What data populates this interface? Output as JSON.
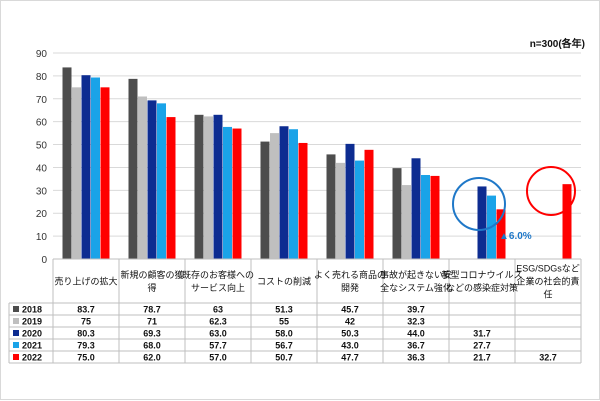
{
  "note": "n=300(各年)",
  "callout": "▲6.0%",
  "chart_data": {
    "type": "bar",
    "ylim": [
      0,
      90
    ],
    "yticks": [
      0,
      10,
      20,
      30,
      40,
      50,
      60,
      70,
      80,
      90
    ],
    "grid": true,
    "categories": [
      [
        "売り上げの拡大"
      ],
      [
        "新規の顧客の獲",
        "得"
      ],
      [
        "既存のお客様への",
        "サービス向上"
      ],
      [
        "コストの削減"
      ],
      [
        "よく売れる商品の",
        "開発"
      ],
      [
        "事故が起きない安",
        "全なシステム強化"
      ],
      [
        "新型コロナウイルス",
        "などの感染症対策"
      ],
      [
        "ESG/SDGsなど",
        "企業の社会的責",
        "任"
      ]
    ],
    "series": [
      {
        "name": "2018",
        "color": "#4d4d4d",
        "values": [
          83.7,
          78.7,
          63,
          51.3,
          45.7,
          39.7,
          null,
          null
        ],
        "labels": [
          "83.7",
          "78.7",
          "63",
          "51.3",
          "45.7",
          "39.7",
          "",
          ""
        ]
      },
      {
        "name": "2019",
        "color": "#bfbfbf",
        "values": [
          75,
          71,
          62.3,
          55,
          42,
          32.3,
          null,
          null
        ],
        "labels": [
          "75",
          "71",
          "62.3",
          "55",
          "42",
          "32.3",
          "",
          ""
        ]
      },
      {
        "name": "2020",
        "color": "#0d2c91",
        "values": [
          80.3,
          69.3,
          63.0,
          58.0,
          50.3,
          44.0,
          31.7,
          null
        ],
        "labels": [
          "80.3",
          "69.3",
          "63.0",
          "58.0",
          "50.3",
          "44.0",
          "31.7",
          ""
        ]
      },
      {
        "name": "2021",
        "color": "#1aa3e8",
        "values": [
          79.3,
          68.0,
          57.7,
          56.7,
          43.0,
          36.7,
          27.7,
          null
        ],
        "labels": [
          "79.3",
          "68.0",
          "57.7",
          "56.7",
          "43.0",
          "36.7",
          "27.7",
          ""
        ]
      },
      {
        "name": "2022",
        "color": "#ff0000",
        "values": [
          75.0,
          62.0,
          57.0,
          50.7,
          47.7,
          36.3,
          21.7,
          32.7
        ],
        "labels": [
          "75.0",
          "62.0",
          "57.0",
          "50.7",
          "47.7",
          "36.3",
          "21.7",
          "32.7"
        ]
      }
    ]
  }
}
